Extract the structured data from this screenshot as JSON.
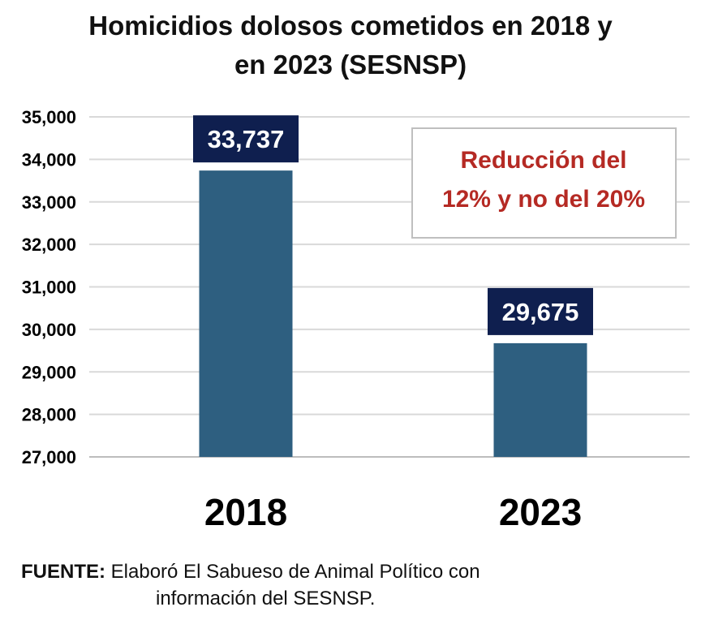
{
  "title": {
    "line1": "Homicidios dolosos cometidos en 2018 y",
    "line2": "en 2023 (SESNSP)"
  },
  "chart_data": {
    "type": "bar",
    "title": "Homicidios dolosos cometidos en 2018 y en 2023 (SESNSP)",
    "categories": [
      "2018",
      "2023"
    ],
    "values": [
      33737,
      29675
    ],
    "value_labels": [
      "33,737",
      "29,675"
    ],
    "ylim": [
      27000,
      35000
    ],
    "yticks": [
      27000,
      28000,
      29000,
      30000,
      31000,
      32000,
      33000,
      34000,
      35000
    ],
    "ytick_labels": [
      "27,000",
      "28,000",
      "29,000",
      "30,000",
      "31,000",
      "32,000",
      "33,000",
      "34,000",
      "35,000"
    ],
    "grid": true,
    "bar_color": "#2e5f80",
    "label_box_color": "#0f1f4f",
    "annotation": {
      "line1": "Reducción del",
      "line2": "12% y no del 20%",
      "color": "#b52a24"
    }
  },
  "footer": {
    "source_label": "FUENTE:",
    "source_text": " Elaboró El Sabueso de Animal Político con",
    "source_text2": "información del SESNSP."
  }
}
